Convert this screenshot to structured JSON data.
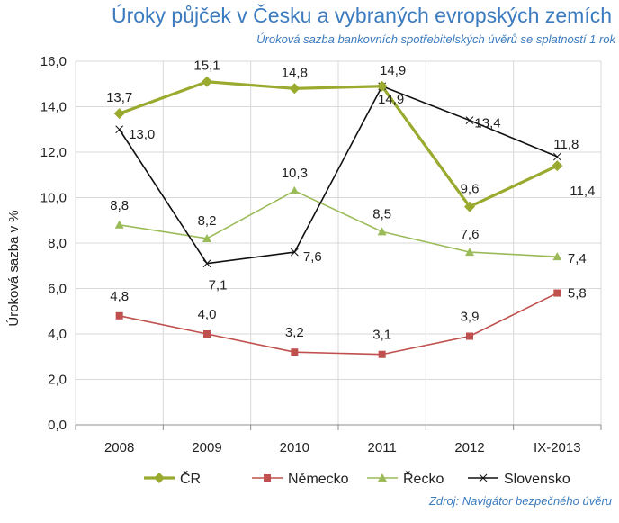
{
  "header": {
    "title": "Úroky půjček v Česku a vybraných evropských zemích",
    "subtitle": "Úroková sazba bankovních spotřebitelských úvěrů se splatností 1 rok"
  },
  "source": "Zdroj: Navigátor bezpečného úvěru",
  "chart_data": {
    "type": "line",
    "title": "Úroky půjček v Česku a vybraných evropských zemích",
    "subtitle": "Úroková sazba bankovních spotřebitelských úvěrů se splatností 1 rok",
    "xlabel": "",
    "ylabel": "Úroková sazba v %",
    "categories": [
      "2008",
      "2009",
      "2010",
      "2011",
      "2012",
      "IX-2013"
    ],
    "ylim": [
      0,
      16
    ],
    "yticks": [
      "0,0",
      "2,0",
      "4,0",
      "6,0",
      "8,0",
      "10,0",
      "12,0",
      "14,0",
      "16,0"
    ],
    "grid": true,
    "legend": "bottom",
    "series": [
      {
        "name": "ČR",
        "color": "#9aaa2e",
        "marker": "diamond",
        "values": [
          13.7,
          15.1,
          14.8,
          14.9,
          9.6,
          11.4
        ],
        "labels": [
          "13,7",
          "15,1",
          "14,8",
          "14,9",
          "9,6",
          "11,4"
        ]
      },
      {
        "name": "Německo",
        "color": "#c0504d",
        "marker": "square",
        "values": [
          4.8,
          4.0,
          3.2,
          3.1,
          3.9,
          5.8
        ],
        "labels": [
          "4,8",
          "4,0",
          "3,2",
          "3,1",
          "3,9",
          "5,8"
        ]
      },
      {
        "name": "Řecko",
        "color": "#9bbb59",
        "marker": "triangle",
        "values": [
          8.8,
          8.2,
          10.3,
          8.5,
          7.6,
          7.4
        ],
        "labels": [
          "8,8",
          "8,2",
          "10,3",
          "8,5",
          "7,6",
          "7,4"
        ]
      },
      {
        "name": "Slovensko",
        "color": "#111111",
        "marker": "x",
        "values": [
          13.0,
          7.1,
          7.6,
          14.9,
          13.4,
          11.8
        ],
        "labels": [
          "13,0",
          "7,1",
          "7,6",
          "14,9",
          "13,4",
          "11,8"
        ]
      }
    ]
  }
}
